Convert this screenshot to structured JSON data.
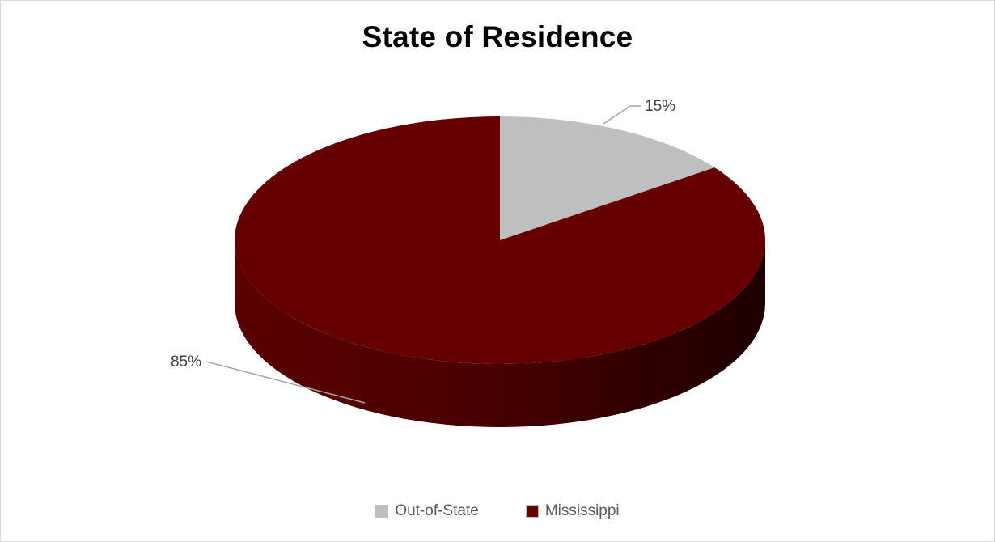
{
  "chart_data": {
    "type": "pie",
    "title": "State of Residence",
    "categories": [
      "Out-of-State",
      "Mississippi"
    ],
    "values": [
      15,
      85
    ],
    "data_labels": [
      "15%",
      "85%"
    ],
    "colors": [
      "#bfbfbf",
      "#660000"
    ],
    "legend_position": "bottom",
    "style": "3d"
  }
}
